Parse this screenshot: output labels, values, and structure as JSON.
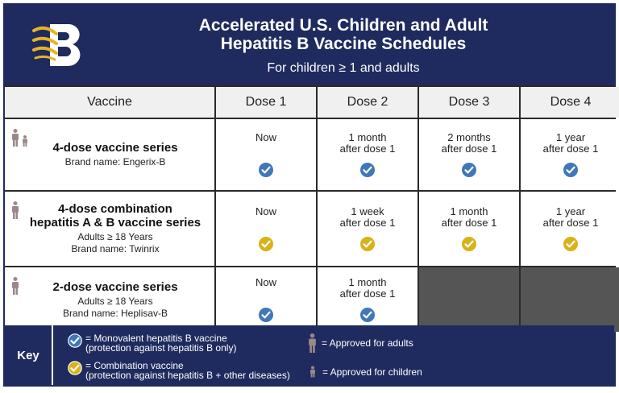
{
  "header": {
    "title_line1": "Accelerated U.S. Children and Adult",
    "title_line2": "Hepatitis B Vaccine Schedules",
    "subtitle": "For children ≥ 1 and adults"
  },
  "table": {
    "headers": [
      "Vaccine",
      "Dose 1",
      "Dose 2",
      "Dose 3",
      "Dose 4"
    ],
    "rows": [
      {
        "name": "4-dose vaccine series",
        "details": [
          "Brand name: Engerix-B"
        ],
        "approved_for": [
          "adults",
          "children"
        ],
        "doses": [
          {
            "line1": "Now",
            "line2": "",
            "check": "monovalent"
          },
          {
            "line1": "1 month",
            "line2": "after dose 1",
            "check": "monovalent"
          },
          {
            "line1": "2 months",
            "line2": "after dose 1",
            "check": "monovalent"
          },
          {
            "line1": "1 year",
            "line2": "after dose 1",
            "check": "monovalent"
          }
        ]
      },
      {
        "name_line1": "4-dose combination",
        "name_line2": "hepatitis A & B vaccine series",
        "details": [
          "Adults ≥ 18 Years",
          "Brand name: Twinrix"
        ],
        "approved_for": [
          "adults"
        ],
        "doses": [
          {
            "line1": "Now",
            "line2": "",
            "check": "combination"
          },
          {
            "line1": "1 week",
            "line2": "after dose 1",
            "check": "combination"
          },
          {
            "line1": "1 month",
            "line2": "after dose 1",
            "check": "combination"
          },
          {
            "line1": "1 year",
            "line2": "after dose 1",
            "check": "combination"
          }
        ]
      },
      {
        "name": "2-dose vaccine series",
        "details": [
          "Adults ≥ 18 Years",
          "Brand name: Heplisav-B"
        ],
        "approved_for": [
          "adults"
        ],
        "doses": [
          {
            "line1": "Now",
            "line2": "",
            "check": "monovalent"
          },
          {
            "line1": "1 month",
            "line2": "after dose 1",
            "check": "monovalent"
          }
        ]
      }
    ]
  },
  "key": {
    "label": "Key",
    "monovalent_line1": "= Monovalent hepatitis B vaccine",
    "monovalent_line2": "(protection against hepatitis B only)",
    "combination_line1": "= Combination vaccine",
    "combination_line2": "(protection against hepatitis B + other diseases)",
    "adults": "= Approved for adults",
    "children": "= Approved for children"
  },
  "colors": {
    "navy": "#1f2b5e",
    "monovalent_check": "#3f78b6",
    "combination_check": "#d9b21a",
    "person_icon": "#9a8887",
    "logo_gold": "#e6b325"
  }
}
